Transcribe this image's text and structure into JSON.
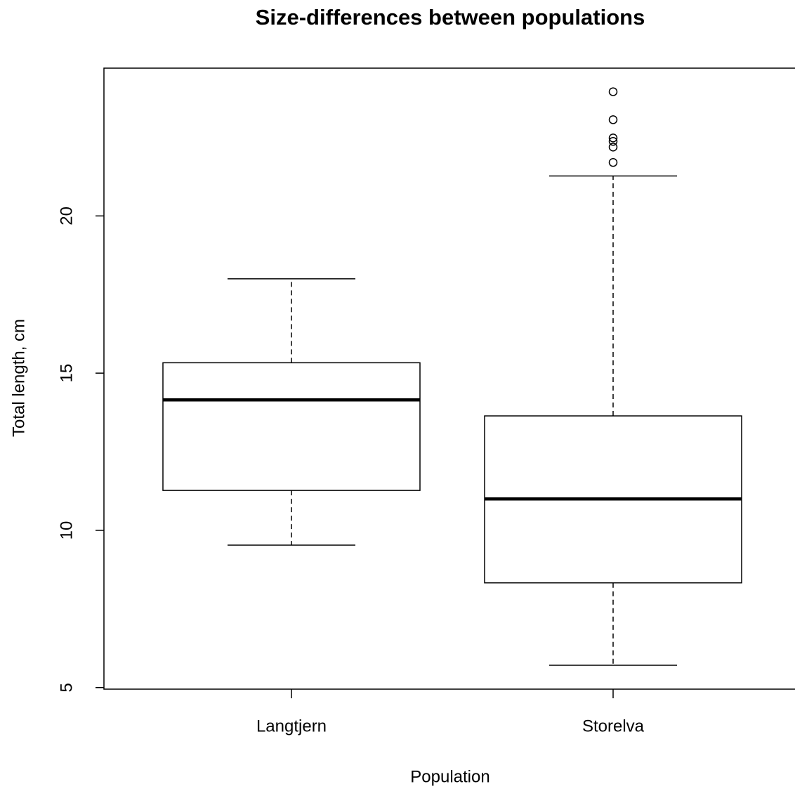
{
  "chart_data": {
    "type": "boxplot",
    "title": "Size-differences between populations",
    "x_label": "Population",
    "y_label": "Total length, cm",
    "categories": [
      "Langtjern",
      "Storelva"
    ],
    "boxes": [
      {
        "low": 9.53,
        "q1": 11.27,
        "median": 14.15,
        "q3": 15.33,
        "high": 18.0,
        "outliers": []
      },
      {
        "low": 5.71,
        "q1": 8.33,
        "median": 11.0,
        "q3": 13.64,
        "high": 21.27,
        "outliers": [
          23.95,
          23.06,
          22.48,
          22.37,
          22.19,
          21.7
        ]
      }
    ],
    "color": "#000000",
    "ylim": [
      4.95,
      24.7
    ],
    "yticks": [
      5,
      10,
      15,
      20
    ],
    "grid": false
  }
}
